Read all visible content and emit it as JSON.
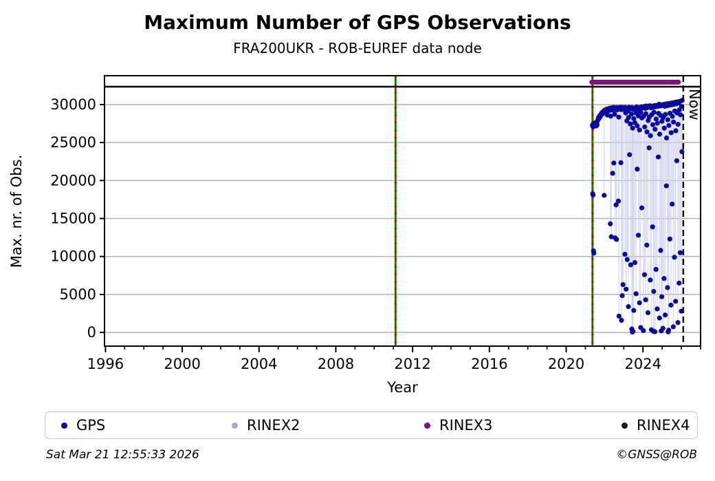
{
  "header": {
    "title": "Maximum Number of GPS Observations",
    "subtitle": "FRA200UKR - ROB-EUREF data node"
  },
  "footer": {
    "timestamp": "Sat Mar 21 12:55:33 2026",
    "copyright": "©GNSS@ROB"
  },
  "chart_data": {
    "type": "scatter",
    "title": "Maximum Number of GPS Observations",
    "subtitle": "FRA200UKR - ROB-EUREF data node",
    "xlabel": "Year",
    "ylabel": "Max. nr. of Obs.",
    "xlim": [
      1995.95,
      2027.0
    ],
    "ylim": [
      -1800,
      33800
    ],
    "xticks": [
      1996,
      2000,
      2004,
      2008,
      2012,
      2016,
      2020,
      2024
    ],
    "minor_xtick_step": 1,
    "yticks": [
      0,
      5000,
      10000,
      15000,
      20000,
      25000,
      30000
    ],
    "grid": "horizontal gridlines only",
    "grid_color": "#b3b3b3",
    "frame_color": "#000000",
    "separator_value": 32350,
    "now_marker": {
      "x": 2026.1,
      "label": "Now",
      "color": "#000000",
      "style": "dashed"
    },
    "event_lines": {
      "x": [
        2011.11,
        2021.37
      ],
      "solid_color": "#008000",
      "dash_color": "#e00000"
    },
    "availability_bars": [
      {
        "name": "RINEX3",
        "color": "#7d117d",
        "start": 2021.33,
        "end": 2025.85,
        "value": 32950
      }
    ],
    "legend": [
      {
        "label": "GPS",
        "color": "#0a0a9e"
      },
      {
        "label": "RINEX2",
        "color": "#a8a8d8"
      },
      {
        "label": "RINEX3",
        "color": "#7d117d"
      },
      {
        "label": "RINEX4",
        "color": "#2a0d2a"
      }
    ],
    "stem_color": "#ccd0ec",
    "stem_top_value": 29200,
    "stem_threshold": 25500,
    "point_radius": 3.6,
    "series": [
      {
        "name": "GPS",
        "color": "#0a0a9e",
        "points": [
          [
            2021.37,
            27300
          ],
          [
            2021.38,
            27150
          ],
          [
            2021.4,
            27420
          ],
          [
            2021.41,
            27080
          ],
          [
            2021.43,
            27260
          ],
          [
            2021.45,
            27500
          ],
          [
            2021.47,
            27180
          ],
          [
            2021.49,
            27350
          ],
          [
            2021.51,
            27600
          ],
          [
            2021.53,
            27260
          ],
          [
            2021.55,
            27430
          ],
          [
            2021.57,
            27190
          ],
          [
            2021.59,
            27540
          ],
          [
            2021.61,
            27320
          ],
          [
            2021.63,
            27820
          ],
          [
            2021.66,
            28060
          ],
          [
            2021.69,
            28320
          ],
          [
            2021.72,
            28180
          ],
          [
            2021.75,
            28540
          ],
          [
            2021.78,
            28410
          ],
          [
            2021.81,
            28690
          ],
          [
            2021.84,
            28860
          ],
          [
            2021.87,
            28740
          ],
          [
            2021.9,
            29010
          ],
          [
            2021.93,
            28880
          ],
          [
            2021.96,
            29120
          ],
          [
            2021.99,
            29240
          ],
          [
            2022.02,
            29070
          ],
          [
            2022.05,
            29310
          ],
          [
            2022.08,
            29160
          ],
          [
            2022.11,
            29400
          ],
          [
            2022.14,
            28620
          ],
          [
            2022.17,
            29280
          ],
          [
            2022.2,
            29450
          ],
          [
            2022.23,
            29190
          ],
          [
            2022.26,
            29520
          ],
          [
            2022.29,
            29340
          ],
          [
            2022.32,
            28480
          ],
          [
            2022.35,
            29410
          ],
          [
            2022.38,
            29580
          ],
          [
            2022.41,
            29270
          ],
          [
            2022.44,
            29490
          ],
          [
            2022.47,
            29630
          ],
          [
            2022.5,
            29360
          ],
          [
            2022.53,
            28720
          ],
          [
            2022.56,
            29550
          ],
          [
            2022.59,
            29420
          ],
          [
            2022.62,
            29610
          ],
          [
            2022.65,
            29300
          ],
          [
            2022.68,
            29560
          ],
          [
            2022.71,
            29440
          ],
          [
            2022.74,
            28350
          ],
          [
            2022.77,
            29620
          ],
          [
            2022.8,
            29480
          ],
          [
            2022.83,
            29590
          ],
          [
            2022.86,
            29330
          ],
          [
            2022.89,
            29640
          ],
          [
            2022.92,
            29510
          ],
          [
            2022.95,
            29600
          ],
          [
            2022.98,
            29380
          ],
          [
            2023.01,
            29560
          ],
          [
            2023.04,
            29300
          ],
          [
            2023.07,
            29620
          ],
          [
            2023.1,
            28900
          ],
          [
            2023.13,
            29460
          ],
          [
            2023.16,
            27850
          ],
          [
            2023.19,
            29580
          ],
          [
            2023.22,
            29150
          ],
          [
            2023.25,
            28300
          ],
          [
            2023.28,
            29640
          ],
          [
            2023.31,
            29420
          ],
          [
            2023.34,
            27450
          ],
          [
            2023.37,
            29500
          ],
          [
            2023.4,
            28750
          ],
          [
            2023.43,
            29610
          ],
          [
            2023.46,
            26900
          ],
          [
            2023.49,
            29360
          ],
          [
            2023.52,
            28150
          ],
          [
            2023.55,
            29550
          ],
          [
            2023.58,
            27600
          ],
          [
            2023.61,
            29450
          ],
          [
            2023.64,
            28880
          ],
          [
            2023.67,
            29680
          ],
          [
            2023.7,
            27200
          ],
          [
            2023.73,
            29380
          ],
          [
            2023.76,
            28520
          ],
          [
            2023.79,
            29600
          ],
          [
            2023.82,
            26650
          ],
          [
            2023.85,
            29480
          ],
          [
            2023.88,
            28970
          ],
          [
            2023.91,
            29690
          ],
          [
            2023.94,
            28240
          ],
          [
            2023.97,
            29540
          ],
          [
            2024.0,
            29620
          ],
          [
            2024.03,
            28450
          ],
          [
            2024.06,
            29750
          ],
          [
            2024.09,
            27050
          ],
          [
            2024.12,
            29500
          ],
          [
            2024.15,
            28800
          ],
          [
            2024.18,
            29820
          ],
          [
            2024.21,
            26400
          ],
          [
            2024.24,
            29600
          ],
          [
            2024.27,
            27900
          ],
          [
            2024.3,
            29720
          ],
          [
            2024.33,
            28350
          ],
          [
            2024.36,
            29850
          ],
          [
            2024.39,
            25900
          ],
          [
            2024.42,
            29580
          ],
          [
            2024.45,
            28650
          ],
          [
            2024.48,
            29780
          ],
          [
            2024.51,
            27350
          ],
          [
            2024.54,
            29640
          ],
          [
            2024.57,
            28980
          ],
          [
            2024.6,
            29870
          ],
          [
            2024.63,
            26750
          ],
          [
            2024.66,
            29700
          ],
          [
            2024.69,
            28100
          ],
          [
            2024.72,
            29900
          ],
          [
            2024.75,
            27550
          ],
          [
            2024.78,
            29760
          ],
          [
            2024.81,
            28840
          ],
          [
            2024.84,
            30050
          ],
          [
            2024.87,
            26100
          ],
          [
            2024.9,
            29810
          ],
          [
            2024.93,
            28560
          ],
          [
            2024.96,
            29950
          ],
          [
            2024.99,
            27800
          ],
          [
            2025.02,
            29880
          ],
          [
            2025.05,
            28300
          ],
          [
            2025.08,
            30020
          ],
          [
            2025.11,
            26900
          ],
          [
            2025.14,
            29760
          ],
          [
            2025.17,
            28700
          ],
          [
            2025.2,
            30080
          ],
          [
            2025.23,
            25600
          ],
          [
            2025.26,
            29850
          ],
          [
            2025.29,
            28000
          ],
          [
            2025.32,
            30120
          ],
          [
            2025.35,
            27250
          ],
          [
            2025.38,
            29920
          ],
          [
            2025.41,
            28870
          ],
          [
            2025.44,
            30180
          ],
          [
            2025.47,
            26300
          ],
          [
            2025.5,
            29970
          ],
          [
            2025.53,
            28450
          ],
          [
            2025.56,
            30240
          ],
          [
            2025.59,
            27700
          ],
          [
            2025.62,
            30040
          ],
          [
            2025.65,
            29150
          ],
          [
            2025.68,
            30300
          ],
          [
            2025.71,
            26550
          ],
          [
            2025.74,
            30100
          ],
          [
            2025.77,
            28900
          ],
          [
            2025.8,
            30360
          ],
          [
            2025.83,
            27400
          ],
          [
            2025.86,
            30200
          ],
          [
            2025.89,
            29300
          ],
          [
            2025.92,
            30420
          ],
          [
            2025.95,
            28650
          ],
          [
            2025.98,
            30480
          ],
          [
            2026.01,
            29750
          ],
          [
            2026.04,
            30550
          ],
          [
            2021.38,
            18250
          ],
          [
            2021.4,
            18100
          ],
          [
            2021.42,
            10750
          ],
          [
            2021.44,
            10450
          ],
          [
            2021.98,
            18050
          ],
          [
            2022.3,
            14300
          ],
          [
            2022.35,
            12600
          ],
          [
            2022.42,
            20950
          ],
          [
            2022.48,
            22300
          ],
          [
            2022.55,
            12450
          ],
          [
            2022.6,
            16800
          ],
          [
            2022.62,
            12250
          ],
          [
            2022.72,
            17300
          ],
          [
            2022.85,
            22350
          ],
          [
            2022.75,
            2150
          ],
          [
            2022.88,
            1600
          ],
          [
            2022.92,
            4850
          ],
          [
            2022.96,
            6300
          ],
          [
            2023.06,
            10300
          ],
          [
            2023.12,
            5700
          ],
          [
            2023.18,
            9600
          ],
          [
            2023.24,
            3400
          ],
          [
            2023.3,
            23400
          ],
          [
            2023.36,
            8900
          ],
          [
            2023.42,
            450
          ],
          [
            2023.45,
            50
          ],
          [
            2023.48,
            150
          ],
          [
            2023.52,
            2900
          ],
          [
            2023.58,
            9200
          ],
          [
            2023.64,
            5100
          ],
          [
            2023.7,
            21500
          ],
          [
            2023.76,
            12800
          ],
          [
            2023.82,
            3900
          ],
          [
            2023.88,
            650
          ],
          [
            2023.94,
            16400
          ],
          [
            2024.02,
            250
          ],
          [
            2024.08,
            7600
          ],
          [
            2024.14,
            4300
          ],
          [
            2024.2,
            11500
          ],
          [
            2024.26,
            2600
          ],
          [
            2024.32,
            24300
          ],
          [
            2024.38,
            6900
          ],
          [
            2024.44,
            350
          ],
          [
            2024.5,
            13900
          ],
          [
            2024.55,
            150
          ],
          [
            2024.56,
            5400
          ],
          [
            2024.62,
            100
          ],
          [
            2024.68,
            8300
          ],
          [
            2024.74,
            3100
          ],
          [
            2024.8,
            23100
          ],
          [
            2024.86,
            1900
          ],
          [
            2024.92,
            10800
          ],
          [
            2024.95,
            200
          ],
          [
            2024.98,
            4700
          ],
          [
            2025.04,
            550
          ],
          [
            2025.1,
            7100
          ],
          [
            2025.16,
            2300
          ],
          [
            2025.22,
            19300
          ],
          [
            2025.28,
            5900
          ],
          [
            2025.31,
            80
          ],
          [
            2025.34,
            300
          ],
          [
            2025.4,
            12300
          ],
          [
            2025.46,
            3600
          ],
          [
            2025.52,
            16900
          ],
          [
            2025.58,
            750
          ],
          [
            2025.64,
            9900
          ],
          [
            2025.7,
            4100
          ],
          [
            2025.76,
            22600
          ],
          [
            2025.82,
            1300
          ],
          [
            2025.88,
            6500
          ],
          [
            2025.94,
            10500
          ],
          [
            2026.0,
            2800
          ],
          [
            2026.03,
            23800
          ]
        ]
      }
    ]
  }
}
